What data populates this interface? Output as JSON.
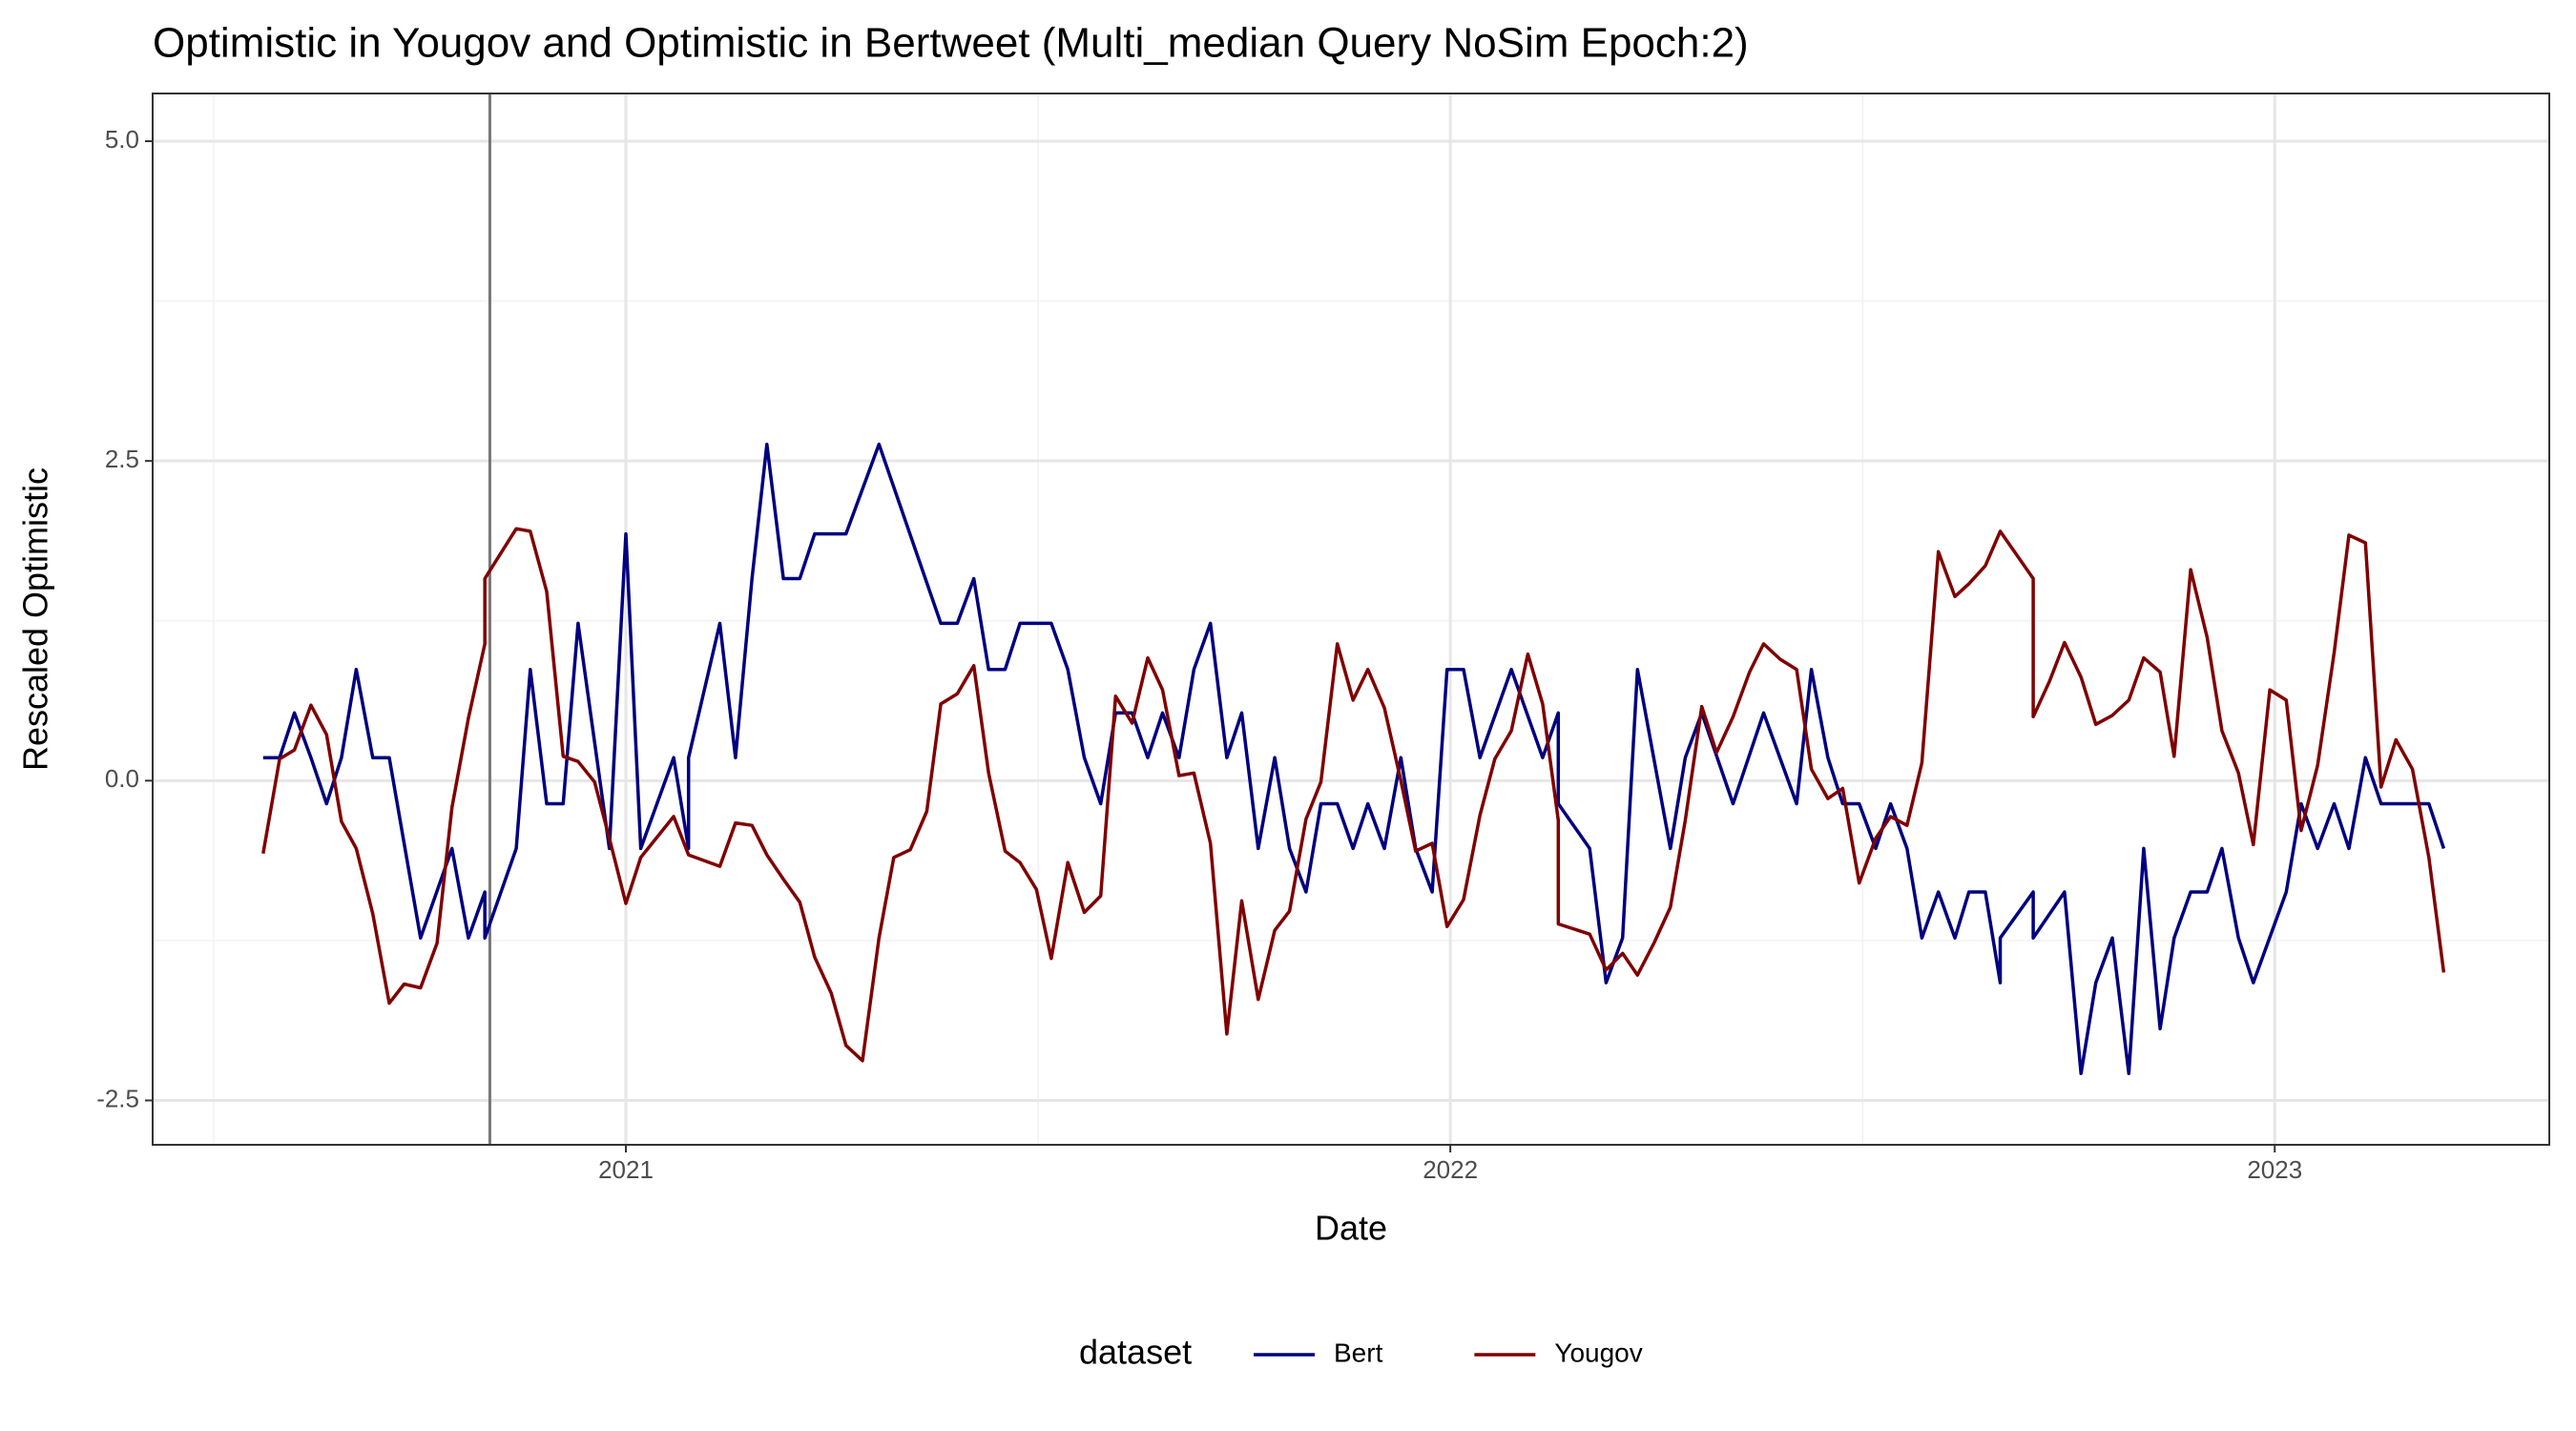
{
  "chart_data": {
    "type": "line",
    "title": "Optimistic in Yougov and Optimistic in Bertweet (Multi_median Query NoSim Epoch:2)",
    "x_label": "Date",
    "y_label": "Rescaled  Optimistic",
    "legend_title": "dataset",
    "legend_position": "bottom",
    "grid": true,
    "vline": 2020.835,
    "vline_color": "#777777",
    "xlim": [
      2020.426,
      2023.333
    ],
    "xticks": [
      2021,
      2022,
      2023
    ],
    "ylim": [
      -2.847,
      5.373
    ],
    "yticks": [
      {
        "value": 5,
        "label": "5.0"
      },
      2.5,
      {
        "value": 0,
        "label": "0.0"
      },
      -2.5
    ],
    "series": [
      {
        "name": "Bert",
        "color": "#000080",
        "x": [
          2020.56,
          2020.58,
          2020.598,
          2020.618,
          2020.637,
          2020.655,
          2020.673,
          2020.693,
          2020.713,
          2020.751,
          2020.789,
          2020.809,
          2020.829,
          2020.829,
          2020.867,
          2020.884,
          2020.904,
          2020.924,
          2020.942,
          2020.98,
          2021.0,
          2021.018,
          2021.058,
          2021.076,
          2021.076,
          2021.114,
          2021.133,
          2021.153,
          2021.171,
          2021.191,
          2021.211,
          2021.229,
          2021.267,
          2021.307,
          2021.382,
          2021.402,
          2021.422,
          2021.44,
          2021.46,
          2021.478,
          2021.516,
          2021.536,
          2021.556,
          2021.576,
          2021.594,
          2021.614,
          2021.633,
          2021.651,
          2021.671,
          2021.689,
          2021.709,
          2021.729,
          2021.747,
          2021.767,
          2021.787,
          2021.805,
          2021.825,
          2021.843,
          2021.863,
          2021.882,
          2021.9,
          2021.92,
          2021.94,
          2021.958,
          2021.978,
          2021.996,
          2022.016,
          2022.036,
          2022.074,
          2022.112,
          2022.131,
          2022.131,
          2022.169,
          2022.189,
          2022.209,
          2022.227,
          2022.267,
          2022.285,
          2022.305,
          2022.343,
          2022.38,
          2022.42,
          2022.438,
          2022.458,
          2022.476,
          2022.496,
          2022.516,
          2022.534,
          2022.554,
          2022.572,
          2022.592,
          2022.612,
          2022.629,
          2022.649,
          2022.667,
          2022.667,
          2022.707,
          2022.707,
          2022.745,
          2022.765,
          2022.783,
          2022.803,
          2022.823,
          2022.841,
          2022.861,
          2022.878,
          2022.898,
          2022.918,
          2022.936,
          2022.956,
          2022.974,
          2023.014,
          2023.032,
          2023.052,
          2023.072,
          2023.09,
          2023.11,
          2023.129,
          2023.167,
          2023.187,
          2023.205
        ],
        "values": [
          0.18,
          0.18,
          0.53,
          0.18,
          -0.18,
          0.18,
          0.87,
          0.18,
          0.18,
          -1.23,
          -0.53,
          -1.23,
          -0.87,
          -1.23,
          -0.53,
          0.87,
          -0.18,
          -0.18,
          1.23,
          -0.53,
          1.93,
          -0.53,
          0.18,
          -0.53,
          0.18,
          1.23,
          0.18,
          1.58,
          2.63,
          1.58,
          1.58,
          1.93,
          1.93,
          2.63,
          1.23,
          1.23,
          1.58,
          0.87,
          0.87,
          1.23,
          1.23,
          0.87,
          0.18,
          -0.18,
          0.53,
          0.53,
          0.18,
          0.53,
          0.18,
          0.87,
          1.23,
          0.18,
          0.53,
          -0.53,
          0.18,
          -0.53,
          -0.87,
          -0.18,
          -0.18,
          -0.53,
          -0.18,
          -0.53,
          0.18,
          -0.53,
          -0.87,
          0.87,
          0.87,
          0.18,
          0.87,
          0.18,
          0.53,
          -0.18,
          -0.53,
          -1.58,
          -1.23,
          0.87,
          -0.53,
          0.18,
          0.53,
          -0.18,
          0.53,
          -0.18,
          0.87,
          0.18,
          -0.18,
          -0.18,
          -0.53,
          -0.18,
          -0.53,
          -1.23,
          -0.87,
          -1.23,
          -0.87,
          -0.87,
          -1.58,
          -1.23,
          -0.87,
          -1.23,
          -0.87,
          -2.29,
          -1.58,
          -1.23,
          -2.29,
          -0.53,
          -1.94,
          -1.23,
          -0.87,
          -0.87,
          -0.53,
          -1.23,
          -1.58,
          -0.87,
          -0.18,
          -0.53,
          -0.18,
          -0.53,
          0.18,
          -0.18,
          -0.18,
          -0.18,
          -0.53
        ]
      },
      {
        "name": "Yougov",
        "color": "#800000",
        "x": [
          2020.56,
          2020.58,
          2020.598,
          2020.618,
          2020.637,
          2020.655,
          2020.673,
          2020.693,
          2020.713,
          2020.731,
          2020.751,
          2020.771,
          2020.789,
          2020.809,
          2020.829,
          2020.829,
          2020.867,
          2020.884,
          2020.904,
          2020.924,
          2020.942,
          2020.962,
          2020.98,
          2021.0,
          2021.018,
          2021.058,
          2021.076,
          2021.114,
          2021.133,
          2021.153,
          2021.171,
          2021.191,
          2021.211,
          2021.229,
          2021.249,
          2021.267,
          2021.287,
          2021.307,
          2021.325,
          2021.345,
          2021.365,
          2021.382,
          2021.402,
          2021.422,
          2021.44,
          2021.46,
          2021.478,
          2021.498,
          2021.516,
          2021.536,
          2021.556,
          2021.576,
          2021.594,
          2021.614,
          2021.633,
          2021.651,
          2021.671,
          2021.689,
          2021.709,
          2021.729,
          2021.747,
          2021.767,
          2021.787,
          2021.805,
          2021.825,
          2021.843,
          2021.863,
          2021.882,
          2021.9,
          2021.92,
          2021.94,
          2021.958,
          2021.978,
          2021.996,
          2022.016,
          2022.036,
          2022.054,
          2022.074,
          2022.094,
          2022.112,
          2022.131,
          2022.131,
          2022.169,
          2022.189,
          2022.209,
          2022.227,
          2022.247,
          2022.267,
          2022.285,
          2022.305,
          2022.323,
          2022.343,
          2022.363,
          2022.38,
          2022.4,
          2022.42,
          2022.438,
          2022.458,
          2022.476,
          2022.496,
          2022.516,
          2022.534,
          2022.554,
          2022.572,
          2022.592,
          2022.612,
          2022.629,
          2022.649,
          2022.667,
          2022.707,
          2022.707,
          2022.727,
          2022.745,
          2022.765,
          2022.783,
          2022.803,
          2022.823,
          2022.841,
          2022.861,
          2022.878,
          2022.898,
          2022.918,
          2022.936,
          2022.956,
          2022.974,
          2022.994,
          2023.014,
          2023.032,
          2023.052,
          2023.072,
          2023.09,
          2023.11,
          2023.129,
          2023.147,
          2023.167,
          2023.187,
          2023.205
        ],
        "values": [
          -0.57,
          0.17,
          0.24,
          0.59,
          0.36,
          -0.32,
          -0.53,
          -1.04,
          -1.74,
          -1.59,
          -1.62,
          -1.27,
          -0.21,
          0.49,
          1.07,
          1.58,
          1.97,
          1.95,
          1.48,
          0.19,
          0.15,
          -0.01,
          -0.45,
          -0.96,
          -0.6,
          -0.28,
          -0.58,
          -0.67,
          -0.33,
          -0.35,
          -0.58,
          -0.77,
          -0.95,
          -1.38,
          -1.66,
          -2.07,
          -2.19,
          -1.23,
          -0.6,
          -0.54,
          -0.24,
          0.6,
          0.68,
          0.9,
          0.06,
          -0.55,
          -0.64,
          -0.85,
          -1.39,
          -0.64,
          -1.03,
          -0.9,
          0.66,
          0.45,
          0.96,
          0.71,
          0.04,
          0.06,
          -0.49,
          -1.98,
          -0.94,
          -1.71,
          -1.17,
          -1.02,
          -0.3,
          -0.01,
          1.07,
          0.63,
          0.87,
          0.57,
          0.0,
          -0.55,
          -0.49,
          -1.14,
          -0.93,
          -0.27,
          0.17,
          0.39,
          0.99,
          0.6,
          -0.31,
          -1.12,
          -1.2,
          -1.48,
          -1.35,
          -1.52,
          -1.27,
          -0.99,
          -0.31,
          0.58,
          0.22,
          0.5,
          0.85,
          1.07,
          0.95,
          0.87,
          0.09,
          -0.14,
          -0.06,
          -0.8,
          -0.45,
          -0.28,
          -0.35,
          0.14,
          1.79,
          1.44,
          1.54,
          1.68,
          1.95,
          1.58,
          0.5,
          0.78,
          1.08,
          0.81,
          0.44,
          0.51,
          0.63,
          0.96,
          0.85,
          0.19,
          1.65,
          1.12,
          0.39,
          0.06,
          -0.5,
          0.71,
          0.63,
          -0.39,
          0.12,
          1.0,
          1.92,
          1.86,
          -0.05,
          0.32,
          0.09,
          -0.6,
          -1.5
        ]
      }
    ]
  }
}
